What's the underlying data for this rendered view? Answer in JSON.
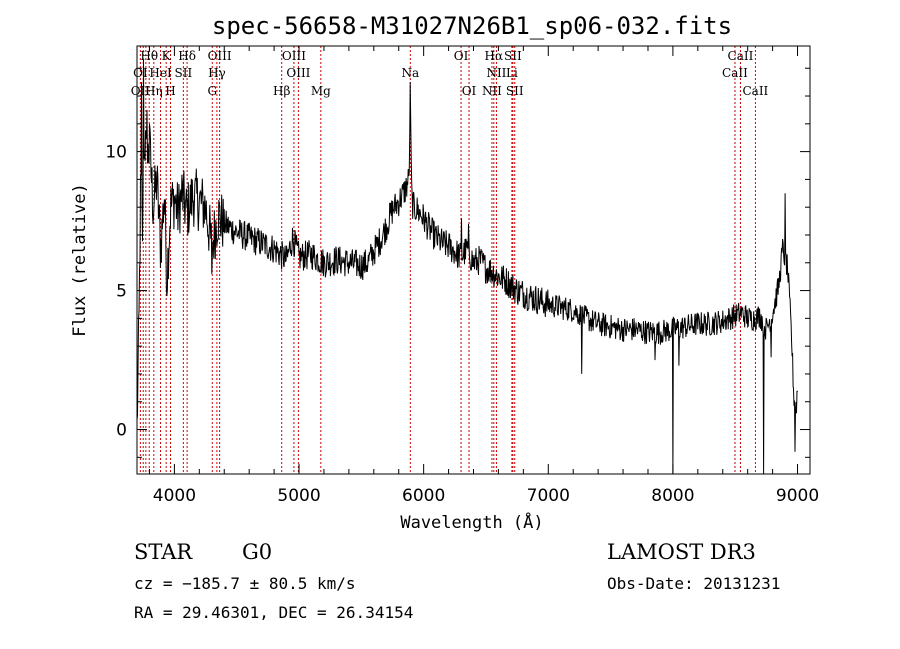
{
  "chart_data": {
    "type": "line",
    "title": "spec-56658-M31027N26B1_sp06-032.fits",
    "xlabel": "Wavelength (Å)",
    "ylabel": "Flux (relative)",
    "xlim": [
      3700,
      9100
    ],
    "ylim": [
      -1.6,
      13.8
    ],
    "xticks": [
      4000,
      5000,
      6000,
      7000,
      8000,
      9000
    ],
    "xtick_labels": [
      "4000",
      "5000",
      "6000",
      "7000",
      "8000",
      "9000"
    ],
    "yticks": [
      0,
      5,
      10
    ],
    "ytick_labels": [
      "0",
      "5",
      "10"
    ],
    "grid": false,
    "series": [
      {
        "color": "#000000",
        "anchors": [
          [
            3700,
            0.0
          ],
          [
            3715,
            3.5
          ],
          [
            3730,
            9.0
          ],
          [
            3745,
            7.0
          ],
          [
            3760,
            10.5
          ],
          [
            3780,
            9.5
          ],
          [
            3800,
            10.2
          ],
          [
            3830,
            8.0
          ],
          [
            3860,
            9.0
          ],
          [
            3890,
            6.5
          ],
          [
            3920,
            8.5
          ],
          [
            3940,
            5.5
          ],
          [
            3970,
            8.0
          ],
          [
            4000,
            8.3
          ],
          [
            4030,
            7.8
          ],
          [
            4060,
            8.5
          ],
          [
            4100,
            7.8
          ],
          [
            4150,
            8.4
          ],
          [
            4200,
            8.2
          ],
          [
            4250,
            8.0
          ],
          [
            4300,
            6.6
          ],
          [
            4350,
            7.7
          ],
          [
            4400,
            7.4
          ],
          [
            4500,
            7.1
          ],
          [
            4600,
            6.9
          ],
          [
            4700,
            6.7
          ],
          [
            4800,
            6.5
          ],
          [
            4850,
            6.3
          ],
          [
            4900,
            6.1
          ],
          [
            4950,
            6.9
          ],
          [
            5000,
            6.2
          ],
          [
            5100,
            6.3
          ],
          [
            5200,
            6.0
          ],
          [
            5300,
            6.1
          ],
          [
            5400,
            6.0
          ],
          [
            5500,
            5.9
          ],
          [
            5550,
            6.0
          ],
          [
            5600,
            6.4
          ],
          [
            5650,
            6.8
          ],
          [
            5700,
            7.3
          ],
          [
            5750,
            7.9
          ],
          [
            5800,
            8.2
          ],
          [
            5850,
            8.6
          ],
          [
            5880,
            9.0
          ],
          [
            5895,
            11.0
          ],
          [
            5905,
            8.2
          ],
          [
            5920,
            8.0
          ],
          [
            5950,
            7.9
          ],
          [
            6000,
            7.6
          ],
          [
            6050,
            7.2
          ],
          [
            6100,
            6.9
          ],
          [
            6150,
            6.7
          ],
          [
            6200,
            6.6
          ],
          [
            6250,
            6.4
          ],
          [
            6300,
            6.2
          ],
          [
            6350,
            6.5
          ],
          [
            6400,
            6.0
          ],
          [
            6450,
            6.1
          ],
          [
            6500,
            5.8
          ],
          [
            6550,
            5.7
          ],
          [
            6600,
            5.5
          ],
          [
            6650,
            5.4
          ],
          [
            6700,
            5.2
          ],
          [
            6750,
            5.0
          ],
          [
            6800,
            4.9
          ],
          [
            6900,
            4.7
          ],
          [
            7000,
            4.5
          ],
          [
            7100,
            4.4
          ],
          [
            7200,
            4.3
          ],
          [
            7300,
            4.0
          ],
          [
            7400,
            3.8
          ],
          [
            7500,
            3.7
          ],
          [
            7600,
            3.6
          ],
          [
            7700,
            3.6
          ],
          [
            7800,
            3.5
          ],
          [
            7900,
            3.5
          ],
          [
            8000,
            3.6
          ],
          [
            8100,
            3.7
          ],
          [
            8200,
            3.8
          ],
          [
            8300,
            3.8
          ],
          [
            8400,
            3.9
          ],
          [
            8500,
            4.1
          ],
          [
            8550,
            4.2
          ],
          [
            8600,
            4.0
          ],
          [
            8650,
            4.0
          ],
          [
            8700,
            4.1
          ],
          [
            8750,
            3.6
          ],
          [
            8800,
            4.2
          ],
          [
            8850,
            5.2
          ],
          [
            8880,
            6.5
          ],
          [
            8920,
            5.8
          ],
          [
            8950,
            3.5
          ],
          [
            8970,
            1.2
          ],
          [
            8990,
            0.8
          ],
          [
            9000,
            1.5
          ]
        ],
        "spikes": [
          [
            3737,
            12.5
          ],
          [
            3752,
            13.3
          ],
          [
            3780,
            11.5
          ],
          [
            3800,
            11.0
          ],
          [
            3940,
            4.8
          ],
          [
            4300,
            5.6
          ],
          [
            5892,
            12.5
          ],
          [
            6305,
            7.6
          ],
          [
            6360,
            7.4
          ],
          [
            7270,
            2.0
          ],
          [
            7855,
            2.5
          ],
          [
            8000,
            -1.6
          ],
          [
            8050,
            2.3
          ],
          [
            8730,
            -1.6
          ],
          [
            8790,
            2.6
          ],
          [
            8900,
            8.5
          ],
          [
            8980,
            -0.8
          ]
        ]
      }
    ],
    "annotations": [
      {
        "text": "Hθ",
        "x": 3798,
        "row": 0
      },
      {
        "text": "K",
        "x": 3934,
        "row": 0
      },
      {
        "text": "Hδ",
        "x": 4102,
        "row": 0
      },
      {
        "text": "OIII",
        "x": 4363,
        "row": 0
      },
      {
        "text": "OIII",
        "x": 4959,
        "row": 0
      },
      {
        "text": "OI",
        "x": 6300,
        "row": 0
      },
      {
        "text": "Hα",
        "x": 6563,
        "row": 0
      },
      {
        "text": "SII",
        "x": 6716,
        "row": 0
      },
      {
        "text": "CaII",
        "x": 8542,
        "row": 0
      },
      {
        "text": "OI",
        "x": 3727,
        "row": 1
      },
      {
        "text": "HeI",
        "x": 3889,
        "row": 1
      },
      {
        "text": "SII",
        "x": 4072,
        "row": 1
      },
      {
        "text": "Hγ",
        "x": 4341,
        "row": 1
      },
      {
        "text": "OIII",
        "x": 4995,
        "row": 1
      },
      {
        "text": "NII",
        "x": 6584,
        "row": 1
      },
      {
        "text": "Li",
        "x": 6708,
        "row": 1
      },
      {
        "text": "CaII",
        "x": 8498,
        "row": 1
      },
      {
        "text": "OII",
        "x": 3727,
        "row": 2
      },
      {
        "text": "Hη",
        "x": 3835,
        "row": 2
      },
      {
        "text": "H",
        "x": 3969,
        "row": 2
      },
      {
        "text": "G",
        "x": 4304,
        "row": 2
      },
      {
        "text": "Hβ",
        "x": 4861,
        "row": 2
      },
      {
        "text": "Mg",
        "x": 5175,
        "row": 2
      },
      {
        "text": "Na",
        "x": 5893,
        "row": 1
      },
      {
        "text": "OI",
        "x": 6364,
        "row": 2
      },
      {
        "text": "NII",
        "x": 6548,
        "row": 2
      },
      {
        "text": "SII",
        "x": 6731,
        "row": 2
      },
      {
        "text": "CaII",
        "x": 8662,
        "row": 2
      }
    ],
    "line_markers": [
      3727,
      3750,
      3771,
      3798,
      3835,
      3889,
      3934,
      3969,
      4072,
      4102,
      4304,
      4341,
      4363,
      4861,
      4959,
      4995,
      5175,
      5893,
      6300,
      6364,
      6548,
      6563,
      6584,
      6708,
      6716,
      6731,
      8498,
      8542,
      8662
    ],
    "marker_color": "#cc0000"
  },
  "info": {
    "class_label": "STAR",
    "subclass": "G0",
    "survey": "LAMOST DR3",
    "redshift": "cz = −185.7 ± 80.5 km/s",
    "obs_date": "Obs-Date: 20131231",
    "coords": "RA =  29.46301, DEC =  26.34154"
  }
}
